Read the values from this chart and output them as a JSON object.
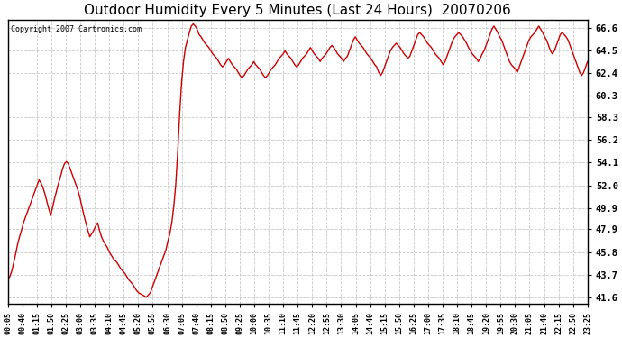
{
  "title": "Outdoor Humidity Every 5 Minutes (Last 24 Hours)  20070206",
  "copyright": "Copyright 2007 Cartronics.com",
  "line_color": "#cc0000",
  "bg_color": "#ffffff",
  "plot_bg_color": "#ffffff",
  "grid_color": "#c8c8c8",
  "title_fontsize": 11,
  "yticks": [
    41.6,
    43.7,
    45.8,
    47.9,
    49.9,
    52.0,
    54.1,
    56.2,
    58.3,
    60.3,
    62.4,
    64.5,
    66.6
  ],
  "ylim": [
    41.0,
    67.4
  ],
  "xtick_labels": [
    "00:05",
    "00:40",
    "01:15",
    "01:50",
    "02:25",
    "03:00",
    "03:35",
    "04:10",
    "04:45",
    "05:20",
    "05:55",
    "06:30",
    "07:05",
    "07:40",
    "08:15",
    "08:50",
    "09:25",
    "10:00",
    "10:35",
    "11:10",
    "11:45",
    "12:20",
    "12:55",
    "13:30",
    "14:05",
    "14:40",
    "15:15",
    "15:50",
    "16:25",
    "17:00",
    "17:35",
    "18:10",
    "18:45",
    "19:20",
    "19:55",
    "20:30",
    "21:05",
    "21:40",
    "22:15",
    "22:50",
    "23:25"
  ],
  "humidity_data": [
    43.2,
    43.5,
    44.0,
    44.8,
    45.6,
    46.5,
    47.2,
    47.8,
    48.5,
    49.0,
    49.5,
    50.0,
    50.5,
    51.0,
    51.5,
    52.0,
    52.5,
    52.2,
    51.8,
    51.2,
    50.5,
    49.8,
    49.2,
    50.0,
    50.8,
    51.5,
    52.2,
    52.8,
    53.5,
    54.0,
    54.2,
    54.0,
    53.5,
    53.0,
    52.5,
    52.0,
    51.5,
    50.8,
    50.0,
    49.2,
    48.5,
    47.8,
    47.2,
    47.5,
    47.8,
    48.2,
    48.5,
    47.8,
    47.2,
    46.8,
    46.5,
    46.2,
    45.8,
    45.5,
    45.2,
    45.0,
    44.8,
    44.5,
    44.2,
    44.0,
    43.8,
    43.5,
    43.2,
    43.0,
    42.8,
    42.5,
    42.2,
    42.0,
    41.9,
    41.8,
    41.7,
    41.6,
    41.8,
    42.0,
    42.5,
    43.0,
    43.5,
    44.0,
    44.5,
    45.0,
    45.5,
    46.0,
    46.8,
    47.5,
    48.5,
    50.0,
    52.0,
    55.0,
    58.5,
    61.5,
    63.5,
    64.8,
    65.5,
    66.2,
    66.8,
    67.0,
    66.8,
    66.5,
    66.0,
    65.8,
    65.5,
    65.2,
    65.0,
    64.8,
    64.5,
    64.2,
    64.0,
    63.8,
    63.5,
    63.2,
    63.0,
    63.2,
    63.5,
    63.8,
    63.5,
    63.2,
    63.0,
    62.8,
    62.5,
    62.2,
    62.0,
    62.2,
    62.5,
    62.8,
    63.0,
    63.2,
    63.5,
    63.2,
    63.0,
    62.8,
    62.5,
    62.2,
    62.0,
    62.2,
    62.5,
    62.8,
    63.0,
    63.2,
    63.5,
    63.8,
    64.0,
    64.2,
    64.5,
    64.2,
    64.0,
    63.8,
    63.5,
    63.2,
    63.0,
    63.2,
    63.5,
    63.8,
    64.0,
    64.2,
    64.5,
    64.8,
    64.5,
    64.2,
    64.0,
    63.8,
    63.5,
    63.8,
    64.0,
    64.2,
    64.5,
    64.8,
    65.0,
    64.8,
    64.5,
    64.2,
    64.0,
    63.8,
    63.5,
    63.8,
    64.0,
    64.5,
    65.0,
    65.5,
    65.8,
    65.5,
    65.2,
    65.0,
    64.8,
    64.5,
    64.2,
    64.0,
    63.8,
    63.5,
    63.2,
    63.0,
    62.5,
    62.2,
    62.5,
    63.0,
    63.5,
    64.0,
    64.5,
    64.8,
    65.0,
    65.2,
    65.0,
    64.8,
    64.5,
    64.2,
    64.0,
    63.8,
    64.0,
    64.5,
    65.0,
    65.5,
    66.0,
    66.2,
    66.0,
    65.8,
    65.5,
    65.2,
    65.0,
    64.8,
    64.5,
    64.2,
    64.0,
    63.8,
    63.5,
    63.2,
    63.5,
    64.0,
    64.5,
    65.0,
    65.5,
    65.8,
    66.0,
    66.2,
    66.0,
    65.8,
    65.5,
    65.2,
    64.8,
    64.5,
    64.2,
    64.0,
    63.8,
    63.5,
    63.8,
    64.2,
    64.5,
    65.0,
    65.5,
    66.0,
    66.5,
    66.8,
    66.5,
    66.2,
    65.8,
    65.5,
    65.0,
    64.5,
    64.0,
    63.5,
    63.2,
    63.0,
    62.8,
    62.5,
    63.0,
    63.5,
    64.0,
    64.5,
    65.0,
    65.5,
    65.8,
    66.0,
    66.2,
    66.5,
    66.8,
    66.5,
    66.2,
    65.8,
    65.5,
    65.0,
    64.5,
    64.2,
    64.5,
    65.0,
    65.5,
    66.0,
    66.2,
    66.0,
    65.8,
    65.5,
    65.0,
    64.5,
    64.0,
    63.5,
    63.0,
    62.5,
    62.2,
    62.5,
    63.0,
    63.5
  ]
}
